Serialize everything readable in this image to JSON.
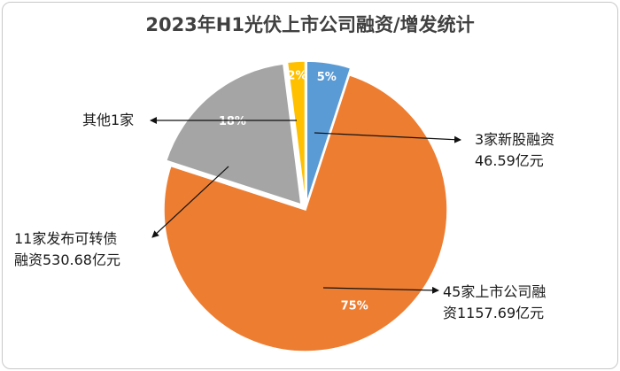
{
  "chart_data": {
    "type": "pie",
    "title": "2023年H1光伏上市公司融资/增发统计",
    "slices": [
      {
        "label": "3家新股融资",
        "value": 5,
        "label_pct": "5%",
        "amount": "46.59亿元",
        "color": "#5b9bd5"
      },
      {
        "label": "45家上市公司融资",
        "value": 75,
        "label_pct": "75%",
        "amount": "1157.69亿元",
        "color": "#ed7d31"
      },
      {
        "label": "11家发布可转债",
        "value": 18,
        "label_pct": "18%",
        "amount": "530.68亿元",
        "color": "#a5a5a5"
      },
      {
        "label": "其他1家",
        "value": 2,
        "label_pct": "2%",
        "amount": "",
        "color": "#ffc000"
      }
    ]
  },
  "annotations": {
    "new_ipo_line1": "3家新股融资",
    "new_ipo_line2": "46.59亿元",
    "listed_line1": "45家上市公司融",
    "listed_line2": "资1157.69亿元",
    "convertible_line1": "11家发布可转债",
    "convertible_line2": "融资530.68亿元",
    "other": "其他1家"
  }
}
